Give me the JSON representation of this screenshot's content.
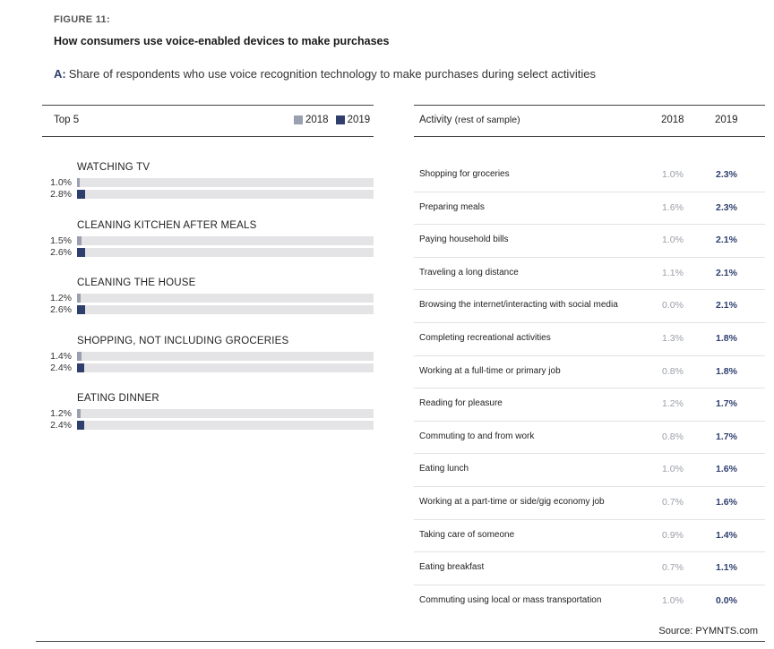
{
  "figure_label": "FIGURE 11:",
  "title": "How consumers use voice-enabled devices to make purchases",
  "subtitle_tag": "A:",
  "subtitle": "Share of respondents who use voice recognition technology to make purchases during select activities",
  "left_panel": {
    "header": "Top 5",
    "legend": [
      {
        "label": "2018",
        "color": "#9aa0b0"
      },
      {
        "label": "2019",
        "color": "#2e3f6e"
      }
    ]
  },
  "table": {
    "headers": {
      "activity": "Activity",
      "activity_note": "(rest of sample)",
      "y2018": "2018",
      "y2019": "2019"
    },
    "rows": [
      {
        "activity": "Shopping for groceries",
        "y2018": "1.0%",
        "y2019": "2.3%"
      },
      {
        "activity": "Preparing meals",
        "y2018": "1.6%",
        "y2019": "2.3%"
      },
      {
        "activity": "Paying household bills",
        "y2018": "1.0%",
        "y2019": "2.1%"
      },
      {
        "activity": "Traveling a long distance",
        "y2018": "1.1%",
        "y2019": "2.1%"
      },
      {
        "activity": "Browsing the internet/interacting with social media",
        "y2018": "0.0%",
        "y2019": "2.1%"
      },
      {
        "activity": "Completing recreational activities",
        "y2018": "1.3%",
        "y2019": "1.8%"
      },
      {
        "activity": "Working at a full-time or primary job",
        "y2018": "0.8%",
        "y2019": "1.8%"
      },
      {
        "activity": "Reading for pleasure",
        "y2018": "1.2%",
        "y2019": "1.7%"
      },
      {
        "activity": "Commuting to and from work",
        "y2018": "0.8%",
        "y2019": "1.7%"
      },
      {
        "activity": "Eating lunch",
        "y2018": "1.0%",
        "y2019": "1.6%"
      },
      {
        "activity": "Working at a part-time or side/gig economy job",
        "y2018": "0.7%",
        "y2019": "1.6%"
      },
      {
        "activity": "Taking care of someone",
        "y2018": "0.9%",
        "y2019": "1.4%"
      },
      {
        "activity": "Eating breakfast",
        "y2018": "0.7%",
        "y2019": "1.1%"
      },
      {
        "activity": "Commuting using local or mass transportation",
        "y2018": "1.0%",
        "y2019": "0.0%"
      }
    ]
  },
  "source": "Source: PYMNTS.com",
  "chart_data": {
    "type": "bar",
    "orientation": "horizontal",
    "title": "Top 5",
    "categories": [
      "WATCHING TV",
      "CLEANING KITCHEN AFTER MEALS",
      "CLEANING THE HOUSE",
      "SHOPPING, NOT INCLUDING GROCERIES",
      "EATING DINNER"
    ],
    "series": [
      {
        "name": "2018",
        "values": [
          1.0,
          1.5,
          1.2,
          1.4,
          1.2
        ],
        "labels": [
          "1.0%",
          "1.5%",
          "1.2%",
          "1.4%",
          "1.2%"
        ],
        "color": "#9aa0b0"
      },
      {
        "name": "2019",
        "values": [
          2.8,
          2.6,
          2.6,
          2.4,
          2.4
        ],
        "labels": [
          "2.8%",
          "2.6%",
          "2.6%",
          "2.4%",
          "2.4%"
        ],
        "color": "#2e3f6e"
      }
    ],
    "xlim": [
      0,
      100
    ],
    "legend": "top-right",
    "grid": false
  }
}
